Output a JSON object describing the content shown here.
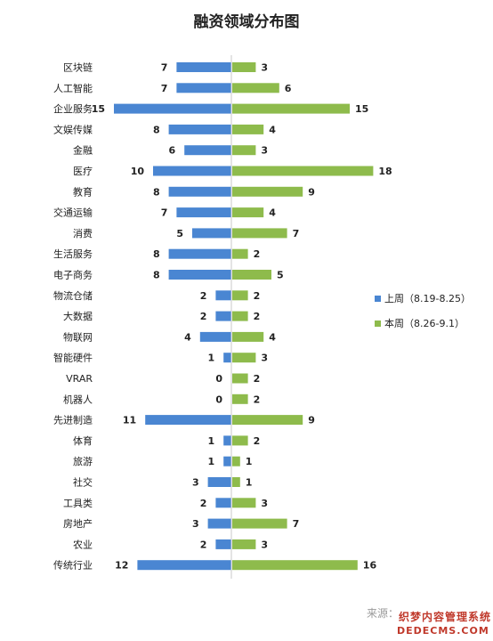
{
  "chart_data": {
    "type": "bar",
    "title": "融资领域分布图",
    "categories": [
      "区块链",
      "人工智能",
      "企业服务",
      "文娱传媒",
      "金融",
      "医疗",
      "教育",
      "交通运输",
      "消费",
      "生活服务",
      "电子商务",
      "物流仓储",
      "大数据",
      "物联网",
      "智能硬件",
      "VRAR",
      "机器人",
      "先进制造",
      "体育",
      "旅游",
      "社交",
      "工具类",
      "房地产",
      "农业",
      "传统行业"
    ],
    "series": [
      {
        "name": "上周（8.19-8.25）",
        "color": "#4a86d2",
        "values": [
          7,
          7,
          15,
          8,
          6,
          10,
          8,
          7,
          5,
          8,
          8,
          2,
          2,
          4,
          1,
          0,
          0,
          11,
          1,
          1,
          3,
          2,
          3,
          2,
          12
        ]
      },
      {
        "name": "本周（8.26-9.1）",
        "color": "#8ebb4c",
        "values": [
          3,
          6,
          15,
          4,
          3,
          18,
          9,
          4,
          7,
          2,
          5,
          2,
          2,
          4,
          3,
          2,
          2,
          9,
          2,
          1,
          1,
          3,
          7,
          3,
          16
        ]
      }
    ],
    "legend_position": "right",
    "grid": false
  },
  "source_label": "来源：",
  "watermark": {
    "line1": "织梦内容管理系统",
    "line2": "DEDECMS.COM"
  }
}
